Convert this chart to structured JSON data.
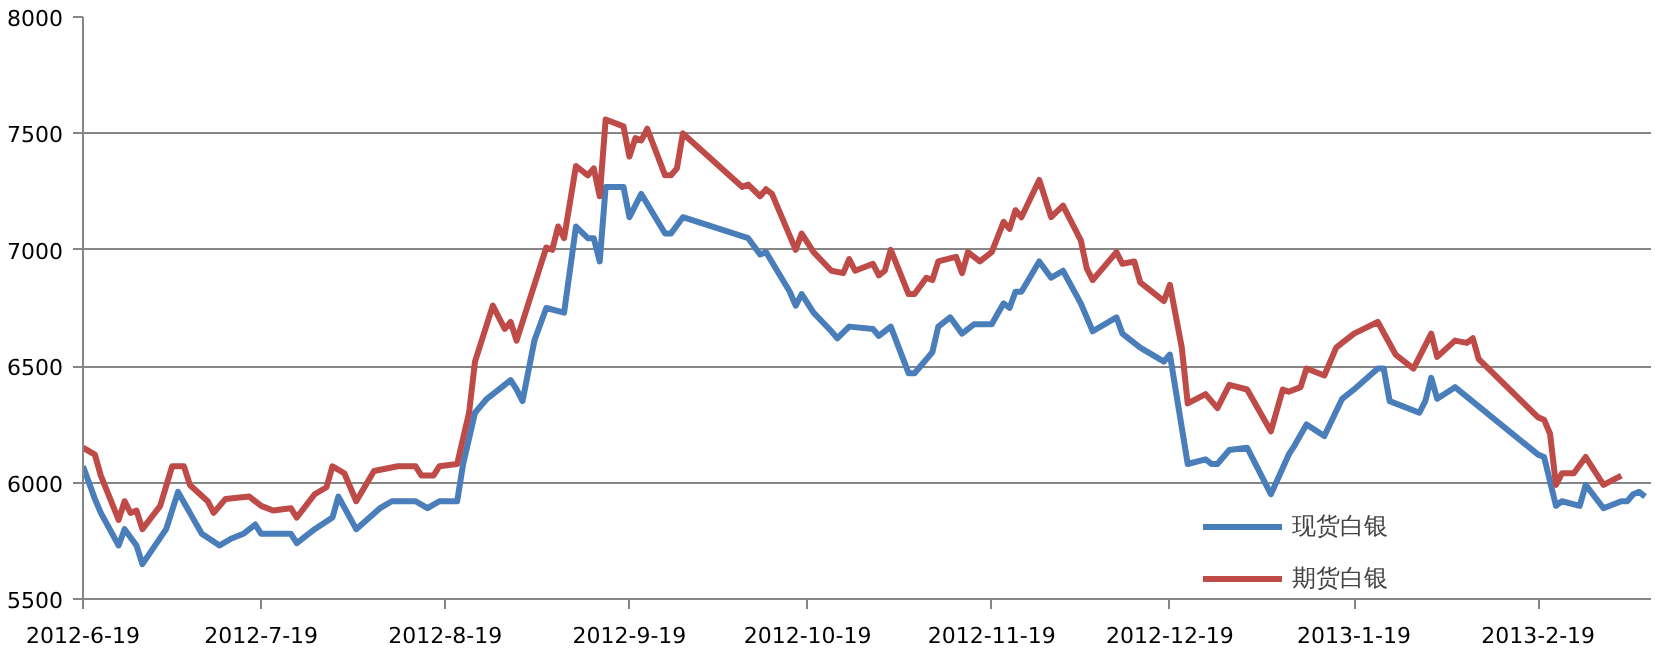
{
  "chart_data": {
    "type": "line",
    "xlim": [
      "2012-06-19",
      "2013-03-10"
    ],
    "ylim": [
      5500,
      8000
    ],
    "xticks": [
      {
        "value": "2012-06-19",
        "label": "2012-6-19"
      },
      {
        "value": "2012-07-19",
        "label": "2012-7-19"
      },
      {
        "value": "2012-08-19",
        "label": "2012-8-19"
      },
      {
        "value": "2012-09-19",
        "label": "2012-9-19"
      },
      {
        "value": "2012-10-19",
        "label": "2012-10-19"
      },
      {
        "value": "2012-11-19",
        "label": "2012-11-19"
      },
      {
        "value": "2012-12-19",
        "label": "2012-12-19"
      },
      {
        "value": "2013-01-19",
        "label": "2013-1-19"
      },
      {
        "value": "2013-02-19",
        "label": "2013-2-19"
      }
    ],
    "yticks": [
      5500,
      6000,
      6500,
      7000,
      7500,
      8000
    ],
    "grid": "y",
    "legend": "bottom right",
    "marker": "none",
    "line_style": "solid",
    "series": [
      {
        "name": "现货白银",
        "color": "#4a7ebb",
        "x": [
          "2012-06-19",
          "2012-06-21",
          "2012-06-22",
          "2012-06-25",
          "2012-06-26",
          "2012-06-28",
          "2012-06-29",
          "2012-07-03",
          "2012-07-05",
          "2012-07-07",
          "2012-07-09",
          "2012-07-12",
          "2012-07-14",
          "2012-07-16",
          "2012-07-18",
          "2012-07-19",
          "2012-07-24",
          "2012-07-25",
          "2012-07-28",
          "2012-07-31",
          "2012-08-01",
          "2012-08-04",
          "2012-08-08",
          "2012-08-10",
          "2012-08-14",
          "2012-08-16",
          "2012-08-18",
          "2012-08-21",
          "2012-08-22",
          "2012-08-24",
          "2012-08-26",
          "2012-08-30",
          "2012-08-31",
          "2012-09-01",
          "2012-09-03",
          "2012-09-05",
          "2012-09-08",
          "2012-09-10",
          "2012-09-12",
          "2012-09-13",
          "2012-09-14",
          "2012-09-15",
          "2012-09-18",
          "2012-09-19",
          "2012-09-21",
          "2012-09-25",
          "2012-09-26",
          "2012-09-28",
          "2012-10-09",
          "2012-10-11",
          "2012-10-12",
          "2012-10-16",
          "2012-10-17",
          "2012-10-18",
          "2012-10-20",
          "2012-10-23",
          "2012-10-24",
          "2012-10-26",
          "2012-10-30",
          "2012-10-31",
          "2012-11-02",
          "2012-11-05",
          "2012-11-06",
          "2012-11-09",
          "2012-11-10",
          "2012-11-12",
          "2012-11-14",
          "2012-11-16",
          "2012-11-19",
          "2012-11-21",
          "2012-11-22",
          "2012-11-23",
          "2012-11-24",
          "2012-11-27",
          "2012-11-29",
          "2012-12-01",
          "2012-12-04",
          "2012-12-06",
          "2012-12-10",
          "2012-12-11",
          "2012-12-14",
          "2012-12-16",
          "2012-12-18",
          "2012-12-19",
          "2012-12-22",
          "2012-12-25",
          "2012-12-26",
          "2012-12-27",
          "2012-12-29",
          "2013-01-01",
          "2013-01-05",
          "2013-01-08",
          "2013-01-09",
          "2013-01-11",
          "2013-01-14",
          "2013-01-17",
          "2013-01-19",
          "2013-01-23",
          "2013-01-24",
          "2013-01-25",
          "2013-01-30",
          "2013-01-31",
          "2013-02-01",
          "2013-02-02",
          "2013-02-05",
          "2013-02-19",
          "2013-02-20",
          "2013-02-22",
          "2013-02-23",
          "2013-02-26",
          "2013-02-27",
          "2013-03-02",
          "2013-03-05",
          "2013-03-06",
          "2013-03-07",
          "2013-03-08",
          "2013-03-09"
        ],
        "values": [
          6070,
          5930,
          5870,
          5730,
          5800,
          5730,
          5650,
          5800,
          5960,
          5870,
          5780,
          5730,
          5760,
          5780,
          5820,
          5780,
          5780,
          5740,
          5800,
          5850,
          5940,
          5800,
          5890,
          5920,
          5920,
          5890,
          5920,
          5920,
          6080,
          6300,
          6360,
          6440,
          6400,
          6350,
          6610,
          6750,
          6730,
          7100,
          7050,
          7050,
          6950,
          7270,
          7270,
          7140,
          7240,
          7070,
          7070,
          7140,
          7050,
          6980,
          6990,
          6820,
          6760,
          6810,
          6730,
          6650,
          6620,
          6670,
          6660,
          6630,
          6670,
          6470,
          6470,
          6560,
          6670,
          6710,
          6640,
          6680,
          6680,
          6770,
          6750,
          6820,
          6820,
          6950,
          6880,
          6910,
          6770,
          6650,
          6710,
          6640,
          6580,
          6550,
          6520,
          6550,
          6080,
          6100,
          6080,
          6080,
          6140,
          6150,
          5950,
          6120,
          6160,
          6250,
          6200,
          6360,
          6400,
          6490,
          6490,
          6350,
          6300,
          6350,
          6450,
          6360,
          6410,
          6120,
          6110,
          5900,
          5920,
          5900,
          5990,
          5890,
          5920,
          5920,
          5950,
          5960,
          5940
        ]
      },
      {
        "name": "期货白银",
        "color": "#be4b48",
        "x": [
          "2012-06-19",
          "2012-06-21",
          "2012-06-22",
          "2012-06-25",
          "2012-06-26",
          "2012-06-27",
          "2012-06-28",
          "2012-06-29",
          "2012-07-02",
          "2012-07-04",
          "2012-07-06",
          "2012-07-07",
          "2012-07-10",
          "2012-07-11",
          "2012-07-13",
          "2012-07-17",
          "2012-07-19",
          "2012-07-21",
          "2012-07-24",
          "2012-07-25",
          "2012-07-28",
          "2012-07-30",
          "2012-07-31",
          "2012-08-02",
          "2012-08-04",
          "2012-08-07",
          "2012-08-11",
          "2012-08-14",
          "2012-08-15",
          "2012-08-17",
          "2012-08-18",
          "2012-08-21",
          "2012-08-23",
          "2012-08-24",
          "2012-08-27",
          "2012-08-29",
          "2012-08-30",
          "2012-08-31",
          "2012-09-04",
          "2012-09-05",
          "2012-09-06",
          "2012-09-07",
          "2012-09-08",
          "2012-09-10",
          "2012-09-12",
          "2012-09-13",
          "2012-09-14",
          "2012-09-15",
          "2012-09-18",
          "2012-09-19",
          "2012-09-20",
          "2012-09-21",
          "2012-09-22",
          "2012-09-25",
          "2012-09-26",
          "2012-09-27",
          "2012-09-28",
          "2012-10-08",
          "2012-10-09",
          "2012-10-11",
          "2012-10-12",
          "2012-10-13",
          "2012-10-17",
          "2012-10-18",
          "2012-10-20",
          "2012-10-23",
          "2012-10-25",
          "2012-10-26",
          "2012-10-27",
          "2012-10-30",
          "2012-10-31",
          "2012-11-01",
          "2012-11-02",
          "2012-11-05",
          "2012-11-06",
          "2012-11-08",
          "2012-11-09",
          "2012-11-10",
          "2012-11-13",
          "2012-11-14",
          "2012-11-15",
          "2012-11-17",
          "2012-11-19",
          "2012-11-21",
          "2012-11-22",
          "2012-11-23",
          "2012-11-24",
          "2012-11-27",
          "2012-11-29",
          "2012-12-01",
          "2012-12-04",
          "2012-12-05",
          "2012-12-06",
          "2012-12-08",
          "2012-12-10",
          "2012-12-11",
          "2012-12-13",
          "2012-12-14",
          "2012-12-18",
          "2012-12-19",
          "2012-12-21",
          "2012-12-22",
          "2012-12-25",
          "2012-12-27",
          "2012-12-29",
          "2013-01-01",
          "2013-01-05",
          "2013-01-07",
          "2013-01-08",
          "2013-01-10",
          "2013-01-11",
          "2013-01-14",
          "2013-01-16",
          "2013-01-17",
          "2013-01-19",
          "2013-01-23",
          "2013-01-26",
          "2013-01-29",
          "2013-02-01",
          "2013-02-02",
          "2013-02-05",
          "2013-02-07",
          "2013-02-08",
          "2013-02-09",
          "2013-02-19",
          "2013-02-20",
          "2013-02-21",
          "2013-02-22",
          "2013-02-23",
          "2013-02-25",
          "2013-02-27",
          "2013-03-02",
          "2013-03-05"
        ],
        "values": [
          6150,
          6120,
          6030,
          5840,
          5920,
          5870,
          5880,
          5800,
          5900,
          6070,
          6070,
          5990,
          5920,
          5870,
          5930,
          5940,
          5900,
          5880,
          5890,
          5850,
          5950,
          5980,
          6070,
          6040,
          5920,
          6050,
          6070,
          6070,
          6030,
          6030,
          6070,
          6080,
          6300,
          6520,
          6760,
          6660,
          6690,
          6610,
          6930,
          7010,
          7000,
          7100,
          7050,
          7360,
          7320,
          7350,
          7230,
          7560,
          7530,
          7400,
          7480,
          7470,
          7520,
          7320,
          7320,
          7350,
          7500,
          7270,
          7280,
          7230,
          7260,
          7240,
          7000,
          7070,
          6990,
          6910,
          6900,
          6960,
          6910,
          6940,
          6890,
          6910,
          7000,
          6810,
          6810,
          6880,
          6870,
          6950,
          6970,
          6900,
          6990,
          6950,
          6990,
          7120,
          7090,
          7170,
          7140,
          7300,
          7140,
          7190,
          7040,
          6920,
          6870,
          6930,
          6990,
          6940,
          6950,
          6860,
          6780,
          6850,
          6580,
          6340,
          6380,
          6320,
          6420,
          6400,
          6220,
          6400,
          6390,
          6410,
          6490,
          6460,
          6580,
          6600,
          6640,
          6690,
          6550,
          6490,
          6640,
          6540,
          6610,
          6600,
          6620,
          6530,
          6280,
          6270,
          6210,
          5990,
          6040,
          6040,
          6110,
          5990,
          6030
        ]
      }
    ]
  }
}
